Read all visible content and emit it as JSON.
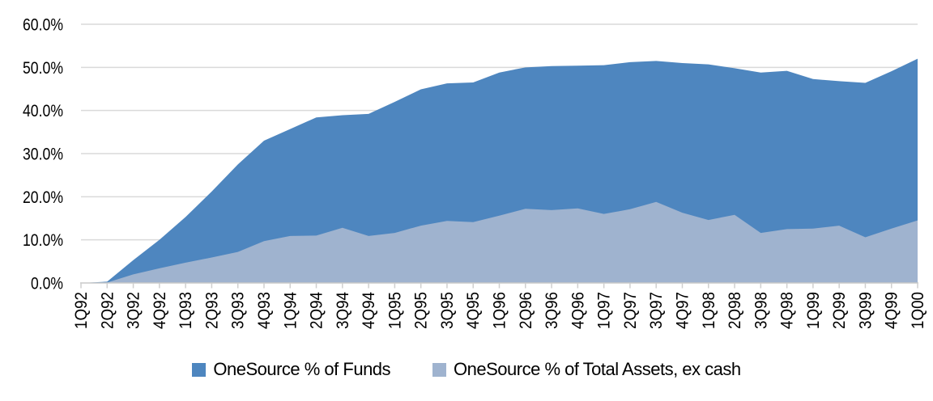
{
  "chart_data": {
    "type": "area",
    "title": "",
    "xlabel": "",
    "ylabel": "",
    "overlapping": true,
    "grid": true,
    "legend_position": "bottom",
    "ylim": [
      0,
      60
    ],
    "ytick_labels": [
      "0.0%",
      "10.0%",
      "20.0%",
      "30.0%",
      "40.0%",
      "50.0%",
      "60.0%"
    ],
    "categories": [
      "1Q92",
      "2Q92",
      "3Q92",
      "4Q92",
      "1Q93",
      "2Q93",
      "3Q93",
      "4Q93",
      "1Q94",
      "2Q94",
      "3Q94",
      "4Q94",
      "1Q95",
      "2Q95",
      "3Q95",
      "4Q95",
      "1Q96",
      "2Q96",
      "3Q96",
      "4Q96",
      "1Q97",
      "2Q97",
      "3Q97",
      "4Q97",
      "1Q98",
      "2Q98",
      "3Q98",
      "4Q98",
      "1Q99",
      "2Q99",
      "3Q99",
      "4Q99",
      "1Q00"
    ],
    "series": [
      {
        "name": "OneSource % of Funds",
        "color": "#4E86BF",
        "values": [
          0,
          0.3,
          5.3,
          10.0,
          15.3,
          21.2,
          27.5,
          33.0,
          35.7,
          38.4,
          38.9,
          39.2,
          42.0,
          44.9,
          46.3,
          46.5,
          48.8,
          50.0,
          50.3,
          50.4,
          50.5,
          51.2,
          51.5,
          51.0,
          50.7,
          49.8,
          48.8,
          49.2,
          47.3,
          46.8,
          46.4,
          49.1,
          52.0
        ]
      },
      {
        "name": "OneSource % of Total Assets, ex cash",
        "color": "#9FB3CF",
        "values": [
          0,
          0.1,
          2.0,
          3.4,
          4.7,
          5.9,
          7.2,
          9.7,
          10.9,
          11.0,
          12.8,
          10.9,
          11.6,
          13.3,
          14.4,
          14.1,
          15.6,
          17.2,
          16.9,
          17.3,
          16.0,
          17.1,
          18.8,
          16.3,
          14.6,
          15.8,
          11.6,
          12.5,
          12.6,
          13.3,
          10.6,
          12.6,
          14.5
        ]
      }
    ],
    "axis_color": "#C9C9C9",
    "gridline_color": "#DADADA",
    "tick_color": "#CFCFCF",
    "text_color": "#000000"
  }
}
